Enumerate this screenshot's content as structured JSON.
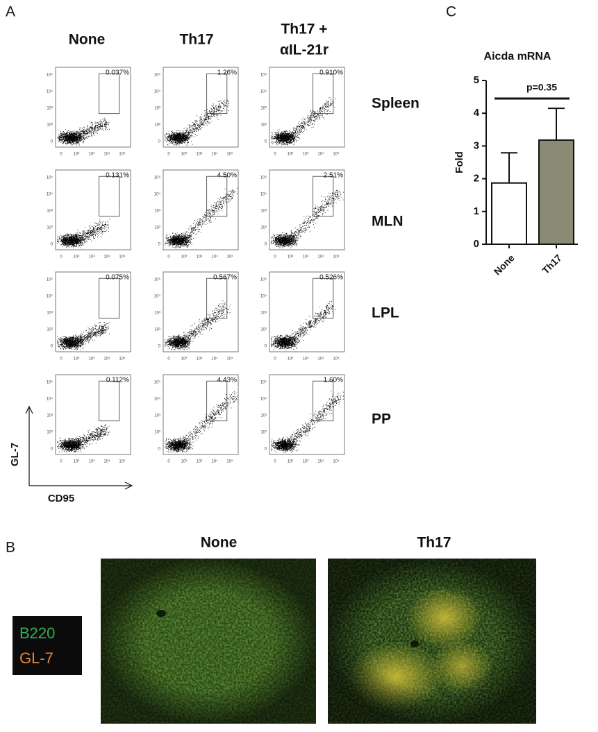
{
  "panel_a": {
    "label": "A",
    "columns": [
      [
        "None"
      ],
      [
        "Th17"
      ],
      [
        "Th17 +",
        "αIL-21r"
      ]
    ],
    "rows": [
      "Spleen",
      "MLN",
      "LPL",
      "PP"
    ],
    "gates": [
      [
        "0.037%",
        "1.26%",
        "0.910%"
      ],
      [
        "0.131%",
        "4.50%",
        "2.51%"
      ],
      [
        "0.075%",
        "0.567%",
        "0.526%"
      ],
      [
        "0.112%",
        "4.43%",
        "1.60%"
      ]
    ],
    "x_axis_label": "CD95",
    "y_axis_label": "GL-7",
    "axis_ticks": [
      "0",
      "10²",
      "10³",
      "10⁴",
      "10⁵"
    ]
  },
  "panel_b": {
    "label": "B",
    "columns": [
      "None",
      "Th17"
    ],
    "legend": [
      "B220",
      "GL-7"
    ]
  },
  "chart_data": {
    "type": "bar",
    "panel_label": "C",
    "title": "Aicda mRNA",
    "ylabel": "Fold",
    "categories": [
      "None",
      "Th17"
    ],
    "values": [
      1.87,
      3.18
    ],
    "errors": [
      0.92,
      0.97
    ],
    "colors": [
      "#ffffff",
      "#8a8a75"
    ],
    "ylim": [
      0,
      5
    ],
    "yticks": [
      0,
      1,
      2,
      3,
      4,
      5
    ],
    "annotation": "p=0.35"
  }
}
